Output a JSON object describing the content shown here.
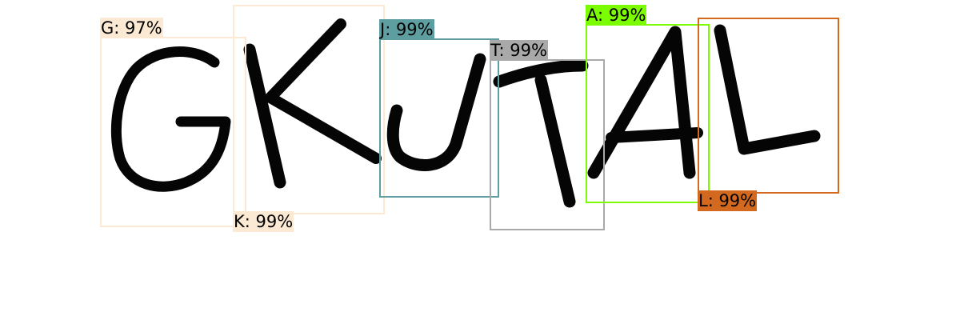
{
  "detections": [
    {
      "label": "G: 97%",
      "color": "#fbe9d3",
      "letter": "G",
      "label_side": "top"
    },
    {
      "label": "K: 99%",
      "color": "#fbe9d3",
      "letter": "K",
      "label_side": "bottom"
    },
    {
      "label": "J: 99%",
      "color": "#5f9ea0",
      "letter": "J",
      "label_side": "top"
    },
    {
      "label": "T: 99%",
      "color": "#a9a9a9",
      "letter": "T",
      "label_side": "top"
    },
    {
      "label": "A: 99%",
      "color": "#7cfc00",
      "letter": "A",
      "label_side": "top"
    },
    {
      "label": "L: 99%",
      "color": "#d2691e",
      "letter": "L",
      "label_side": "bottom"
    }
  ]
}
